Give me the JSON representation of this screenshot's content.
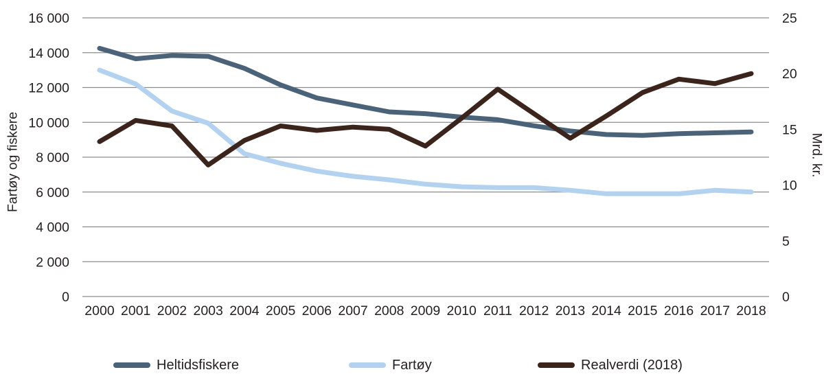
{
  "chart_data": {
    "type": "line",
    "x": [
      "2000",
      "2001",
      "2002",
      "2003",
      "2004",
      "2005",
      "2006",
      "2007",
      "2008",
      "2009",
      "2010",
      "2011",
      "2012",
      "2013",
      "2014",
      "2015",
      "2016",
      "2017",
      "2018"
    ],
    "left_axis": {
      "label": "Fartøy og fiskere",
      "min": 0,
      "max": 16000,
      "tick_step": 2000,
      "ticks": [
        {
          "value": 0,
          "label": "0"
        },
        {
          "value": 2000,
          "label": "2 000"
        },
        {
          "value": 4000,
          "label": "4 000"
        },
        {
          "value": 6000,
          "label": "6 000"
        },
        {
          "value": 8000,
          "label": "8 000"
        },
        {
          "value": 10000,
          "label": "10 000"
        },
        {
          "value": 12000,
          "label": "12 000"
        },
        {
          "value": 14000,
          "label": "14 000"
        },
        {
          "value": 16000,
          "label": "16 000"
        }
      ]
    },
    "right_axis": {
      "label": "Mrd. kr.",
      "min": 0,
      "max": 25,
      "tick_step": 5,
      "ticks": [
        {
          "value": 0,
          "label": "0"
        },
        {
          "value": 5,
          "label": "5"
        },
        {
          "value": 10,
          "label": "10"
        },
        {
          "value": 15,
          "label": "15"
        },
        {
          "value": 20,
          "label": "20"
        },
        {
          "value": 25,
          "label": "25"
        }
      ]
    },
    "grid": "horizontal-only",
    "legend_position": "bottom",
    "series": [
      {
        "name": "Heltidsfiskere",
        "axis": "left",
        "color": "#4a6378",
        "values": [
          14250,
          13650,
          13840,
          13790,
          13100,
          12150,
          11400,
          11000,
          10600,
          10500,
          10300,
          10150,
          9800,
          9500,
          9300,
          9250,
          9350,
          9400,
          9450
        ]
      },
      {
        "name": "Fartøy",
        "axis": "left",
        "color": "#b3d2ef",
        "values": [
          13000,
          12200,
          10650,
          9950,
          8200,
          7650,
          7200,
          6900,
          6700,
          6450,
          6300,
          6250,
          6250,
          6100,
          5900,
          5900,
          5900,
          6100,
          6000
        ]
      },
      {
        "name": "Realverdi (2018)",
        "axis": "right",
        "color": "#3b241b",
        "values": [
          13.9,
          15.8,
          15.3,
          11.8,
          14.0,
          15.3,
          14.9,
          15.2,
          15.0,
          13.5,
          16.0,
          18.6,
          16.4,
          14.2,
          16.2,
          18.3,
          19.5,
          19.1,
          20.0
        ]
      }
    ],
    "styles": {
      "grid_color": "#8c8c8c",
      "text_color": "#231f20",
      "line_width": 7
    }
  }
}
